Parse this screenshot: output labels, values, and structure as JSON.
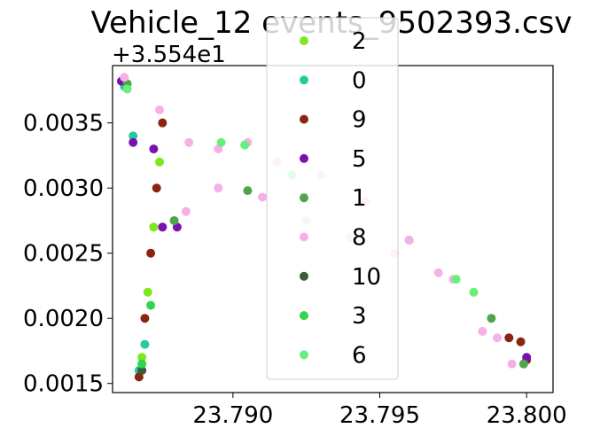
{
  "chart_data": {
    "type": "scatter",
    "title": "Vehicle_12 events_9502393.csv",
    "xlabel": "",
    "ylabel": "",
    "y_offset_label": "+3.554e1",
    "xlim": [
      23.7859,
      23.8009
    ],
    "ylim": [
      0.00143,
      0.00394
    ],
    "x_ticks": [
      23.79,
      23.795,
      23.8
    ],
    "x_tick_labels": [
      "23.790",
      "23.795",
      "23.800"
    ],
    "y_ticks": [
      0.0015,
      0.002,
      0.0025,
      0.003,
      0.0035
    ],
    "y_tick_labels": [
      "0.0015",
      "0.0020",
      "0.0025",
      "0.0030",
      "0.0035"
    ],
    "grid": false,
    "legend_position": "upper center",
    "series": [
      {
        "name": "2",
        "color": "#7de81e",
        "x": [
          23.7869,
          23.7871,
          23.7873,
          23.7875
        ],
        "y": [
          0.0017,
          0.0022,
          0.0027,
          0.0032
        ]
      },
      {
        "name": "0",
        "color": "#26c9a0",
        "x": [
          23.7863,
          23.7866,
          23.7868,
          23.787
        ],
        "y": [
          0.00378,
          0.0034,
          0.0016,
          0.0018
        ]
      },
      {
        "name": "9",
        "color": "#8b2413",
        "x": [
          23.7868,
          23.787,
          23.7872,
          23.7874,
          23.7876,
          23.7994,
          23.7998,
          23.8
        ],
        "y": [
          0.00155,
          0.002,
          0.0025,
          0.003,
          0.0035,
          0.00185,
          0.00182,
          0.00168
        ]
      },
      {
        "name": "5",
        "color": "#7a12b0",
        "x": [
          23.7862,
          23.7866,
          23.7873,
          23.7876,
          23.7881,
          23.8
        ],
        "y": [
          0.00382,
          0.00335,
          0.0033,
          0.0027,
          0.0027,
          0.0017
        ]
      },
      {
        "name": "1",
        "color": "#4ea64a",
        "x": [
          23.7864,
          23.788,
          23.7905,
          23.796,
          23.7988,
          23.7999
        ],
        "y": [
          0.0038,
          0.00275,
          0.00298,
          0.0026,
          0.002,
          0.00165
        ]
      },
      {
        "name": "8",
        "color": "#f5b1e6",
        "x": [
          23.7863,
          23.7875,
          23.7885,
          23.7895,
          23.7905,
          23.7915,
          23.793,
          23.7945,
          23.796,
          23.7975,
          23.799,
          23.7884,
          23.7895,
          23.791,
          23.7925,
          23.794,
          23.7955,
          23.797,
          23.7985,
          23.7995
        ],
        "y": [
          0.00385,
          0.0036,
          0.00335,
          0.0033,
          0.00335,
          0.0032,
          0.0031,
          0.0029,
          0.0026,
          0.0023,
          0.00185,
          0.00282,
          0.003,
          0.00293,
          0.00275,
          0.00262,
          0.0025,
          0.00235,
          0.0019,
          0.00165
        ]
      },
      {
        "name": "10",
        "color": "#3d5a3a",
        "x": [
          23.7869
        ],
        "y": [
          0.0016
        ]
      },
      {
        "name": "3",
        "color": "#2fd64a",
        "x": [
          23.7869,
          23.7872
        ],
        "y": [
          0.00165,
          0.0021
        ]
      },
      {
        "name": "6",
        "color": "#66f07a",
        "x": [
          23.7864,
          23.7896,
          23.7904,
          23.792,
          23.7976,
          23.7982
        ],
        "y": [
          0.00376,
          0.00335,
          0.00333,
          0.0031,
          0.0023,
          0.0022
        ]
      }
    ]
  }
}
